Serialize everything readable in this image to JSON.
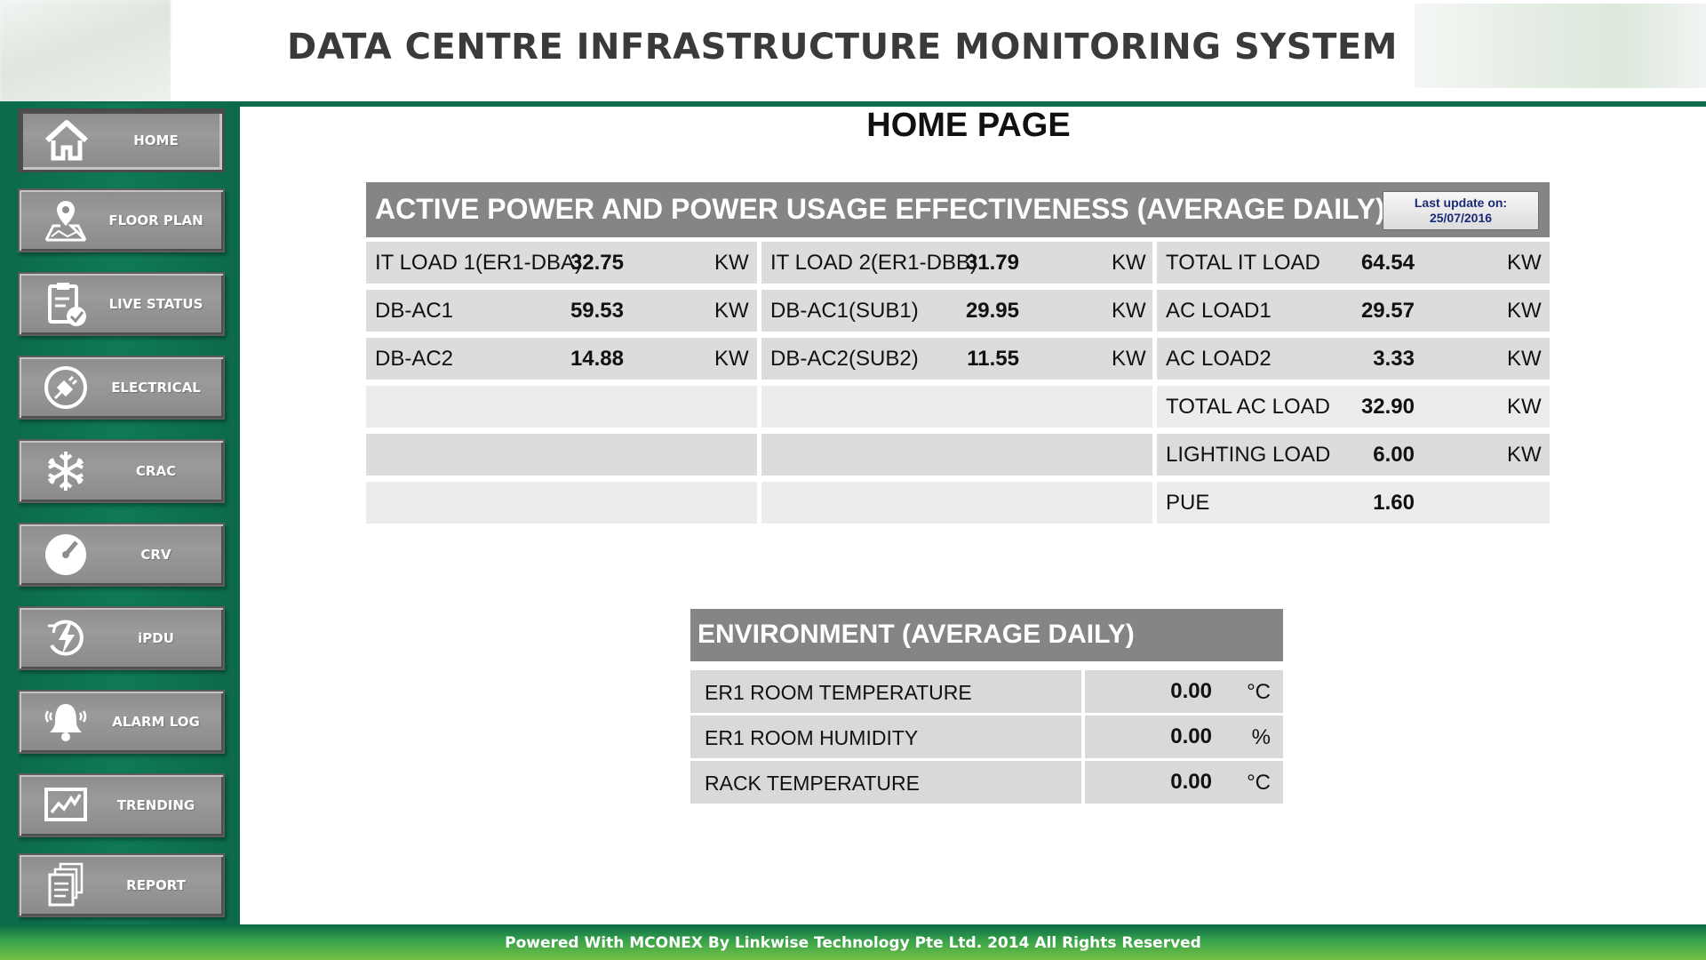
{
  "header": {
    "title": "DATA CENTRE INFRASTRUCTURE MONITORING SYSTEM"
  },
  "sidebar": {
    "items": [
      {
        "label": "HOME",
        "icon": "home-icon"
      },
      {
        "label": "FLOOR PLAN",
        "icon": "map-pin-icon"
      },
      {
        "label": "LIVE STATUS",
        "icon": "clipboard-check-icon"
      },
      {
        "label": "ELECTRICAL",
        "icon": "plug-icon"
      },
      {
        "label": "CRAC",
        "icon": "snowflake-icon"
      },
      {
        "label": "CRV",
        "icon": "gauge-icon"
      },
      {
        "label": "iPDU",
        "icon": "power-bolt-icon"
      },
      {
        "label": "ALARM LOG",
        "icon": "bell-icon"
      },
      {
        "label": "TRENDING",
        "icon": "trend-chart-icon"
      },
      {
        "label": "REPORT",
        "icon": "document-icon"
      }
    ],
    "active": "HOME"
  },
  "page": {
    "title": "HOME PAGE"
  },
  "power": {
    "title": "ACTIVE POWER AND POWER USAGE EFFECTIVENESS (AVERAGE DAILY)",
    "last_update_label": "Last update on:",
    "last_update_date": "25/07/2016",
    "col1": [
      {
        "label": "IT LOAD 1(ER1-DBA)",
        "value": "32.75",
        "unit": "KW"
      },
      {
        "label": "DB-AC1",
        "value": "59.53",
        "unit": "KW"
      },
      {
        "label": "DB-AC2",
        "value": "14.88",
        "unit": "KW"
      }
    ],
    "col2": [
      {
        "label": "IT LOAD 2(ER1-DBB)",
        "value": "31.79",
        "unit": "KW"
      },
      {
        "label": "DB-AC1(SUB1)",
        "value": "29.95",
        "unit": "KW"
      },
      {
        "label": "DB-AC2(SUB2)",
        "value": "11.55",
        "unit": "KW"
      }
    ],
    "col3": [
      {
        "label": "TOTAL IT LOAD",
        "value": "64.54",
        "unit": "KW"
      },
      {
        "label": "AC LOAD1",
        "value": "29.57",
        "unit": "KW"
      },
      {
        "label": "AC LOAD2",
        "value": "3.33",
        "unit": "KW"
      },
      {
        "label": "TOTAL AC LOAD",
        "value": "32.90",
        "unit": "KW"
      },
      {
        "label": "LIGHTING LOAD",
        "value": "6.00",
        "unit": "KW"
      },
      {
        "label": "PUE",
        "value": "1.60",
        "unit": ""
      }
    ]
  },
  "environment": {
    "title": "ENVIRONMENT (AVERAGE DAILY)",
    "rows": [
      {
        "label": "ER1 ROOM TEMPERATURE",
        "value": "0.00",
        "unit": "°C"
      },
      {
        "label": "ER1 ROOM HUMIDITY",
        "value": "0.00",
        "unit": "%"
      },
      {
        "label": "RACK TEMPERATURE",
        "value": "0.00",
        "unit": "°C"
      }
    ]
  },
  "footer": {
    "text": "Powered With MCONEX By Linkwise Technology Pte Ltd. 2014 All Rights Reserved"
  },
  "colors": {
    "brand_green": "#0d6e4d",
    "panel_header_gray": "#858585",
    "cell_gray": "#dcdcdc",
    "button_gray": "#8d8d8d"
  }
}
